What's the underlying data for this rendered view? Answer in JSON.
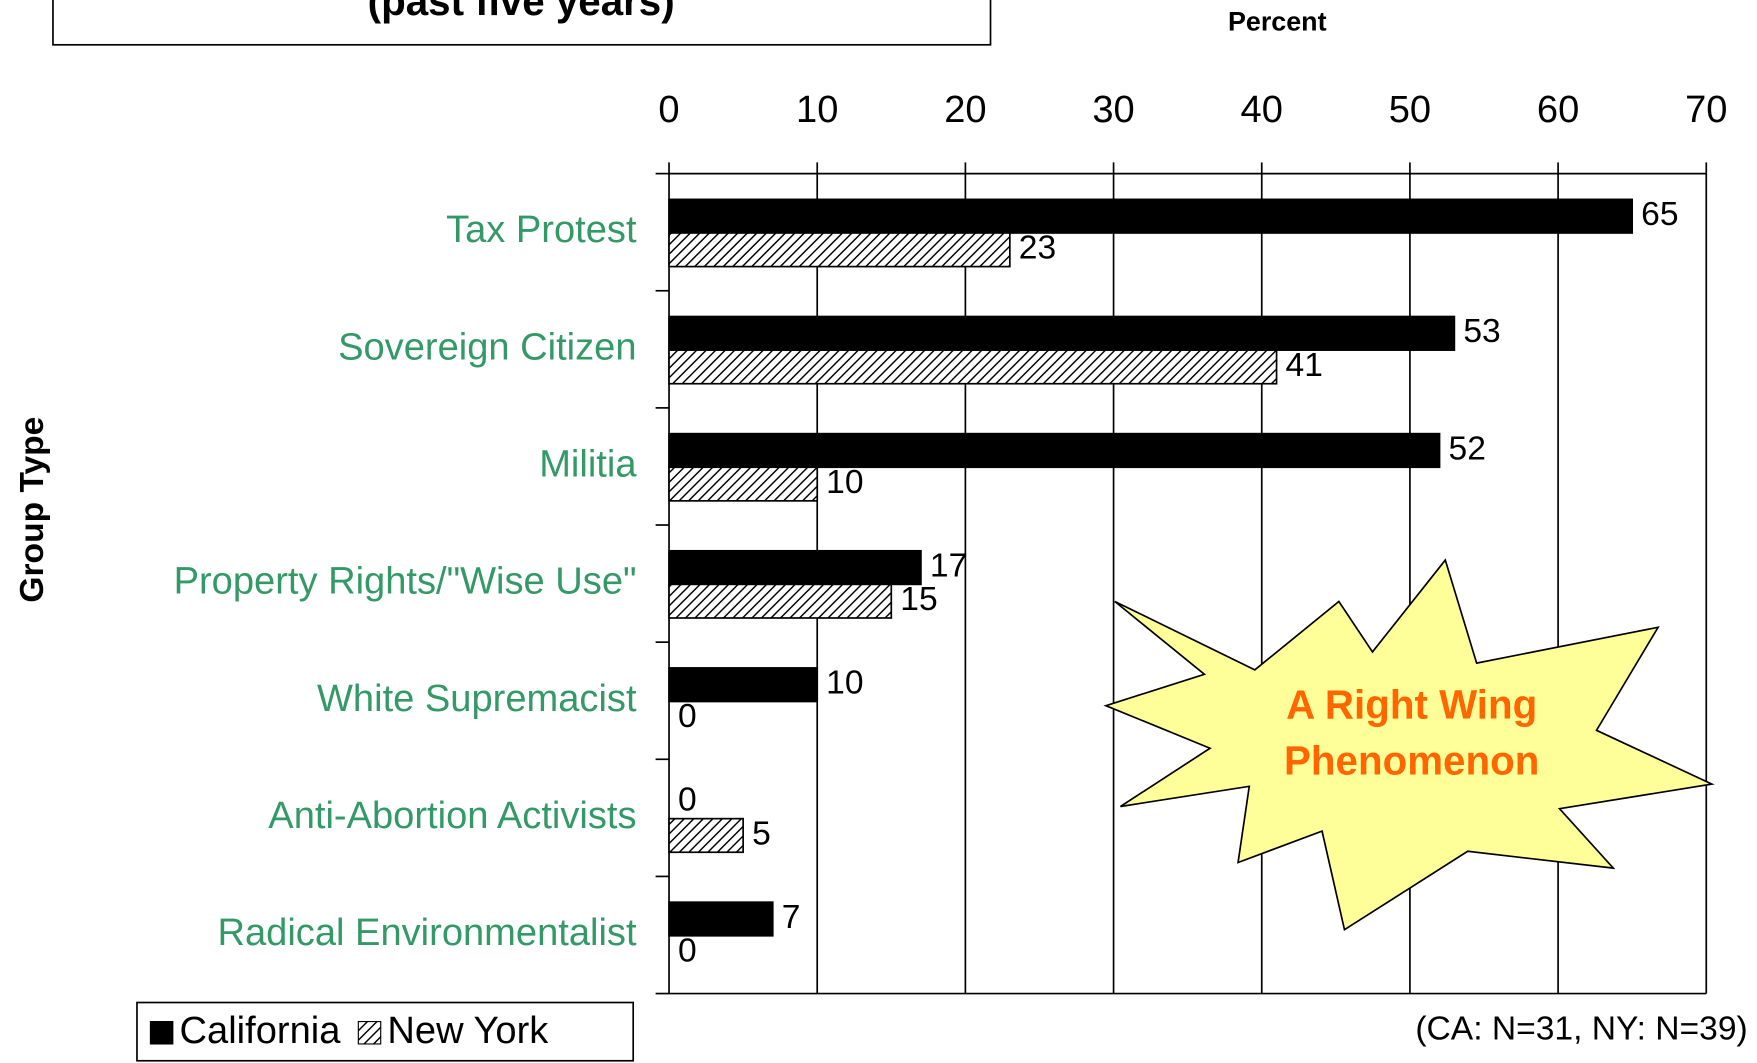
{
  "chart_data": {
    "type": "bar",
    "orientation": "horizontal",
    "title": "(past five years)",
    "x_axis_label": "Percent",
    "y_axis_label": "Group Type",
    "categories": [
      "Tax Protest",
      "Sovereign Citizen",
      "Militia",
      "Property Rights/\"Wise Use\"",
      "White Supremacist",
      "Anti-Abortion Activists",
      "Radical Environmentalist"
    ],
    "series": [
      {
        "name": "California",
        "color": "#000000",
        "values": [
          65,
          53,
          52,
          17,
          10,
          0,
          7
        ]
      },
      {
        "name": "New York",
        "color": "#000000",
        "pattern": "hatched",
        "values": [
          23,
          41,
          10,
          15,
          0,
          5,
          0
        ]
      }
    ],
    "xlim": [
      0,
      70
    ],
    "xticks": [
      0,
      10,
      20,
      30,
      40,
      50,
      60,
      70
    ],
    "grid": true,
    "legend": "bottom-left",
    "annotation": [
      "A Right Wing",
      "Phenomenon"
    ],
    "note": "(CA: N=31,  NY: N=39)"
  }
}
